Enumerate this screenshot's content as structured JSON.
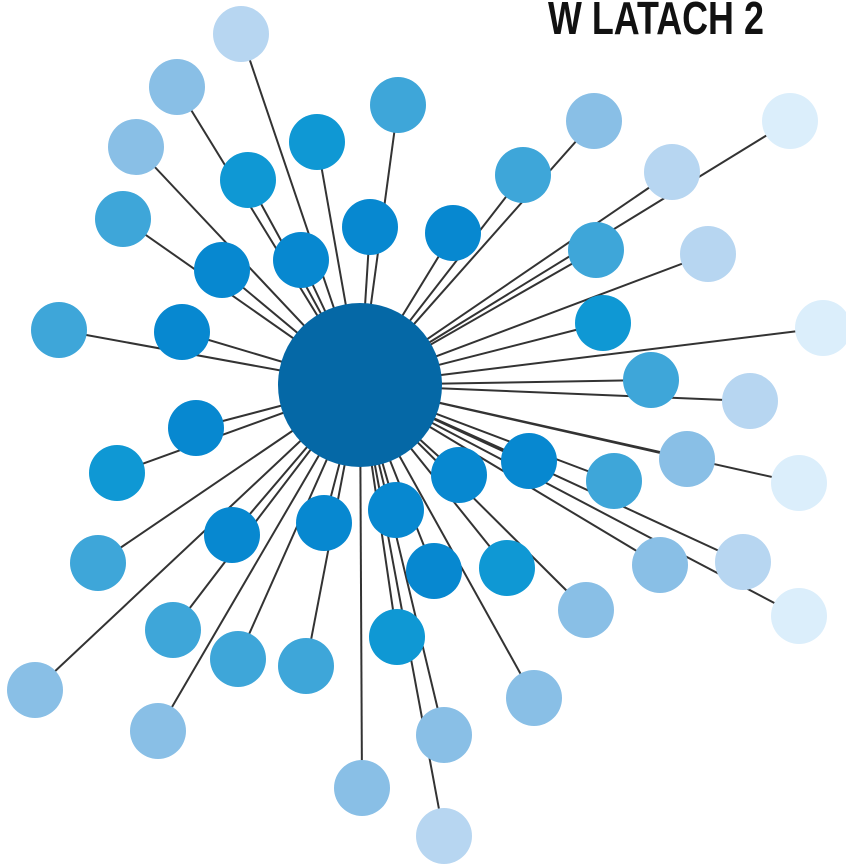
{
  "header": {
    "title": "W LATACH 2"
  }
}
